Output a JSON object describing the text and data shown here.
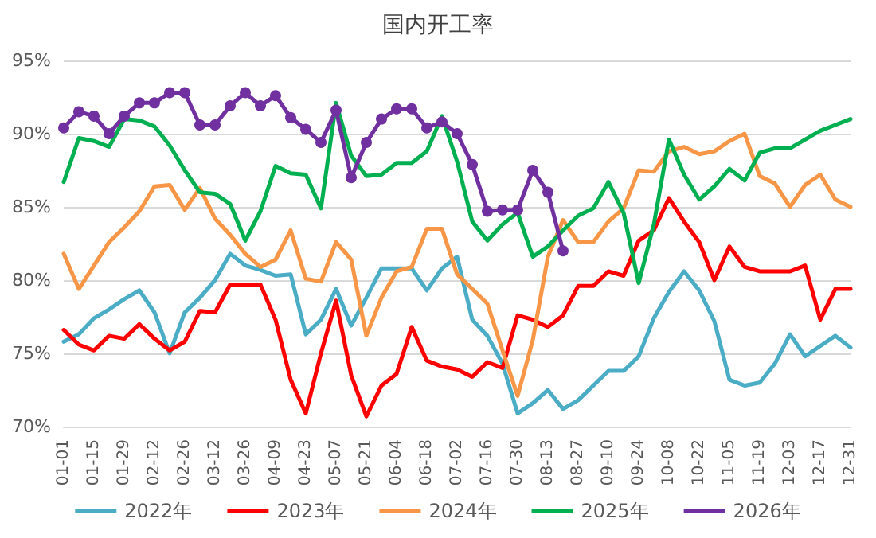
{
  "chart_data": {
    "type": "line",
    "title": "国内开工率",
    "categories": [
      "01-01",
      null,
      "01-15",
      null,
      "01-29",
      null,
      "02-12",
      null,
      "02-26",
      null,
      "03-12",
      null,
      "03-26",
      null,
      "04-09",
      null,
      "04-23",
      null,
      "05-07",
      null,
      "05-21",
      null,
      "06-04",
      null,
      "06-18",
      null,
      "07-02",
      null,
      "07-16",
      null,
      "07-30",
      null,
      "08-13",
      null,
      "08-27",
      null,
      "09-10",
      null,
      "09-24",
      null,
      "10-08",
      null,
      "10-22",
      null,
      "11-05",
      null,
      "11-19",
      null,
      "12-03",
      null,
      "12-17",
      null,
      "12-31"
    ],
    "series": [
      {
        "name": "2022年",
        "color": "#4bacc6",
        "marker": "none",
        "values": [
          75.8,
          76.3,
          77.4,
          78.0,
          78.7,
          79.3,
          77.8,
          75.0,
          77.8,
          78.8,
          80.0,
          81.8,
          81.0,
          80.7,
          80.3,
          80.4,
          76.3,
          77.3,
          79.4,
          76.9,
          78.8,
          80.8,
          80.8,
          80.8,
          79.3,
          80.8,
          81.6,
          77.3,
          76.2,
          74.3,
          70.9,
          71.6,
          72.5,
          71.2,
          71.8,
          72.8,
          73.8,
          73.8,
          74.8,
          77.4,
          79.2,
          80.6,
          79.3,
          77.2,
          73.2,
          72.8,
          73.0,
          74.3,
          76.3,
          74.8,
          75.5,
          76.2,
          75.4
        ]
      },
      {
        "name": "2023年",
        "color": "#ff0000",
        "marker": "none",
        "values": [
          76.6,
          75.6,
          75.2,
          76.2,
          76.0,
          77.0,
          76.0,
          75.2,
          75.8,
          77.9,
          77.8,
          79.7,
          79.7,
          79.7,
          77.3,
          73.2,
          70.9,
          75.0,
          78.6,
          73.5,
          70.7,
          72.8,
          73.6,
          76.8,
          74.5,
          74.1,
          73.9,
          73.4,
          74.4,
          74.0,
          77.6,
          77.3,
          76.8,
          77.6,
          79.6,
          79.6,
          80.6,
          80.3,
          82.7,
          83.4,
          85.6,
          84.0,
          82.6,
          80.0,
          82.3,
          80.9,
          80.6,
          80.6,
          80.6,
          81.0,
          77.3,
          79.4,
          79.4
        ]
      },
      {
        "name": "2024年",
        "color": "#f79646",
        "marker": "none",
        "values": [
          81.8,
          79.4,
          81.0,
          82.6,
          83.6,
          84.7,
          86.4,
          86.5,
          84.8,
          86.3,
          84.2,
          83.1,
          81.8,
          80.9,
          81.4,
          83.4,
          80.1,
          79.9,
          82.6,
          81.4,
          76.2,
          78.8,
          80.6,
          80.9,
          83.5,
          83.5,
          80.4,
          79.4,
          78.4,
          75.2,
          72.1,
          75.9,
          81.6,
          84.1,
          82.6,
          82.6,
          84.0,
          84.9,
          87.5,
          87.4,
          88.8,
          89.1,
          88.6,
          88.8,
          89.5,
          90.0,
          87.1,
          86.6,
          85.0,
          86.5,
          87.2,
          85.5,
          85.0
        ]
      },
      {
        "name": "2025年",
        "color": "#00b050",
        "marker": "none",
        "values": [
          86.7,
          89.7,
          89.5,
          89.1,
          91.0,
          90.9,
          90.5,
          89.2,
          87.5,
          86.0,
          85.9,
          85.2,
          82.7,
          84.7,
          87.8,
          87.3,
          87.2,
          84.9,
          92.1,
          88.5,
          87.1,
          87.2,
          88.0,
          88.0,
          88.8,
          91.2,
          88.1,
          84.0,
          82.7,
          83.8,
          84.6,
          81.6,
          82.3,
          83.4,
          84.4,
          84.9,
          86.7,
          84.6,
          79.8,
          83.8,
          89.6,
          87.2,
          85.5,
          86.4,
          87.6,
          86.8,
          88.7,
          89.0,
          89.0,
          89.6,
          90.2,
          90.6,
          91.0
        ]
      },
      {
        "name": "2026年",
        "color": "#7030a0",
        "marker": "circle",
        "values": [
          90.4,
          91.5,
          91.2,
          90.0,
          91.2,
          92.1,
          92.1,
          92.8,
          92.8,
          90.6,
          90.6,
          91.9,
          92.8,
          91.9,
          92.6,
          91.1,
          90.3,
          89.4,
          91.6,
          87.0,
          89.4,
          91.0,
          91.7,
          91.7,
          90.4,
          90.8,
          90.0,
          87.9,
          84.7,
          84.8,
          84.8,
          87.5,
          86.0,
          82.0,
          null,
          null,
          null,
          null,
          null,
          null,
          null,
          null,
          null,
          null,
          null,
          null,
          null,
          null,
          null,
          null,
          null,
          null,
          null
        ]
      }
    ],
    "ylim": [
      70,
      95
    ],
    "yticks": [
      {
        "value": 70,
        "label": "70%"
      },
      {
        "value": 75,
        "label": "75%"
      },
      {
        "value": 80,
        "label": "80%"
      },
      {
        "value": 85,
        "label": "85%"
      },
      {
        "value": 90,
        "label": "90%"
      },
      {
        "value": 95,
        "label": "95%"
      }
    ],
    "grid": "y",
    "legend": "bottom",
    "line_style": "solid"
  }
}
